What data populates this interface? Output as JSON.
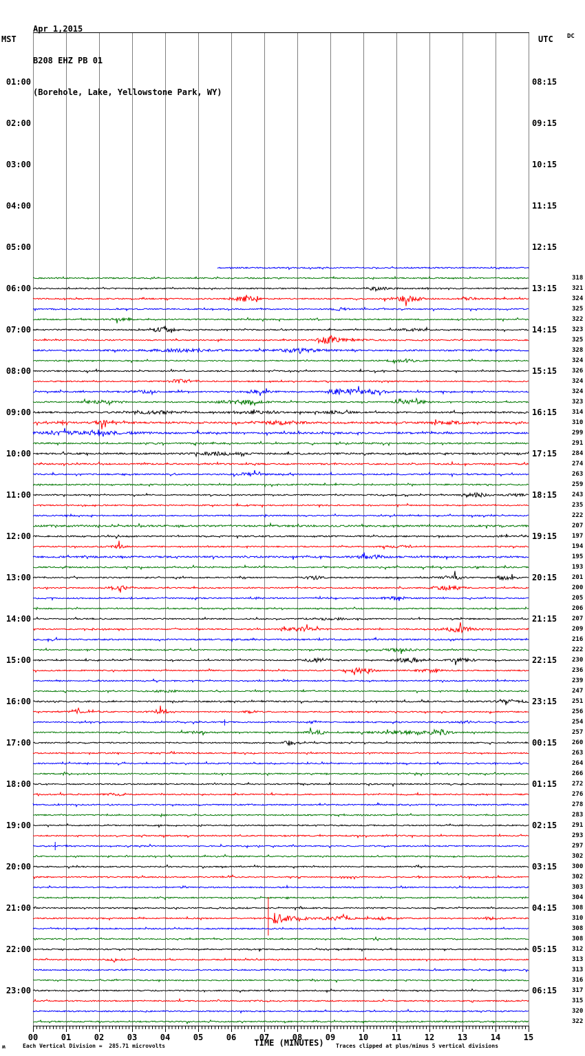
{
  "title": {
    "date": "Apr 1,2015",
    "station": "B208 EHZ PB 01",
    "location": "(Borehole, Lake, Yellowstone Park, WY)"
  },
  "axes": {
    "left_label": "MST",
    "right_label": "UTC",
    "dc_label": "DC",
    "x_title": "TIME (MINUTES)",
    "x_ticks": [
      "00",
      "01",
      "02",
      "03",
      "04",
      "05",
      "06",
      "07",
      "08",
      "09",
      "10",
      "11",
      "12",
      "13",
      "14",
      "15"
    ]
  },
  "footer": {
    "mark": "ʍ",
    "scale_note": "Each Vertical Division =  285.71 microvolts",
    "clip_note": "Traces clipped at plus/minus 5 vertical divisions"
  },
  "hour_rows": [
    {
      "mst": "01:00",
      "utc": "08:15"
    },
    {
      "mst": "02:00",
      "utc": "09:15"
    },
    {
      "mst": "03:00",
      "utc": "10:15"
    },
    {
      "mst": "04:00",
      "utc": "11:15"
    },
    {
      "mst": "05:00",
      "utc": "12:15"
    },
    {
      "mst": "06:00",
      "utc": "13:15"
    },
    {
      "mst": "07:00",
      "utc": "14:15"
    },
    {
      "mst": "08:00",
      "utc": "15:15"
    },
    {
      "mst": "09:00",
      "utc": "16:15"
    },
    {
      "mst": "10:00",
      "utc": "17:15"
    },
    {
      "mst": "11:00",
      "utc": "18:15"
    },
    {
      "mst": "12:00",
      "utc": "19:15"
    },
    {
      "mst": "13:00",
      "utc": "20:15"
    },
    {
      "mst": "14:00",
      "utc": "21:15"
    },
    {
      "mst": "15:00",
      "utc": "22:15"
    },
    {
      "mst": "16:00",
      "utc": "23:15"
    },
    {
      "mst": "17:00",
      "utc": "00:15"
    },
    {
      "mst": "18:00",
      "utc": "01:15"
    },
    {
      "mst": "19:00",
      "utc": "02:15"
    },
    {
      "mst": "20:00",
      "utc": "03:15"
    },
    {
      "mst": "21:00",
      "utc": "04:15"
    },
    {
      "mst": "22:00",
      "utc": "05:15"
    },
    {
      "mst": "23:00",
      "utc": "06:15"
    }
  ],
  "colors": {
    "grid": "#7f7f7f",
    "border": "#000000",
    "trace": {
      "k": "#000000",
      "r": "#ff0000",
      "b": "#0000ff",
      "g": "#007700"
    }
  },
  "chart_data": {
    "type": "line",
    "title": "B208 EHZ PB 01 helicorder, Apr 1,2015",
    "xlabel": "TIME (MINUTES)",
    "x_range_minutes": [
      0,
      15
    ],
    "ylabel_left": "MST",
    "ylabel_right": "UTC",
    "row_interval_minutes": 15,
    "clip_divisions": 5,
    "microvolts_per_division": 285.71,
    "rows": [
      {
        "t": "05:30",
        "c": "b",
        "dc": null,
        "start": 5.58
      },
      {
        "t": "05:45",
        "c": "g",
        "dc": 318
      },
      {
        "t": "06:00",
        "c": "k",
        "dc": 321,
        "ev": [
          [
            10.5,
            1.5,
            0.3,
            0
          ]
        ]
      },
      {
        "t": "06:15",
        "c": "r",
        "dc": 324,
        "ev": [
          [
            6.4,
            3.5,
            0.25,
            0
          ],
          [
            11.3,
            4,
            0.3,
            0
          ],
          [
            13.2,
            1.5,
            0.2,
            0
          ]
        ]
      },
      {
        "t": "06:30",
        "c": "b",
        "dc": 325,
        "ev": [
          [
            9.3,
            1.5,
            0.15,
            0
          ]
        ]
      },
      {
        "t": "06:45",
        "c": "g",
        "dc": 322,
        "ev": [
          [
            2.7,
            1.5,
            0.2,
            0
          ]
        ]
      },
      {
        "t": "07:00",
        "c": "k",
        "dc": 323,
        "ev": [
          [
            3.9,
            2.5,
            0.3,
            0
          ],
          [
            11.5,
            1.5,
            0.3,
            0
          ]
        ]
      },
      {
        "t": "07:15",
        "c": "r",
        "dc": 325,
        "ev": [
          [
            8.9,
            5,
            0.2,
            0
          ],
          [
            9.0,
            2,
            0.8,
            1
          ]
        ]
      },
      {
        "t": "07:30",
        "c": "b",
        "dc": 328,
        "n": 1.3,
        "ev": [
          [
            4.5,
            1.5,
            0.8,
            0
          ],
          [
            8,
            2,
            0.5,
            0
          ]
        ]
      },
      {
        "t": "07:45",
        "c": "g",
        "dc": 324,
        "ev": [
          [
            11.2,
            2,
            0.3,
            0
          ]
        ]
      },
      {
        "t": "08:00",
        "c": "k",
        "dc": 326
      },
      {
        "t": "08:15",
        "c": "r",
        "dc": 324,
        "ev": [
          [
            4.4,
            2.5,
            0.2,
            0
          ]
        ]
      },
      {
        "t": "08:30",
        "c": "b",
        "dc": 324,
        "n": 1.1,
        "ev": [
          [
            3.3,
            1.5,
            0.3,
            0
          ],
          [
            6.8,
            2,
            0.3,
            0
          ],
          [
            9.3,
            3.5,
            0.3,
            0
          ],
          [
            10.2,
            2.5,
            0.4,
            0
          ]
        ]
      },
      {
        "t": "08:45",
        "c": "g",
        "dc": 323,
        "ev": [
          [
            2,
            2,
            0.3,
            0
          ],
          [
            6.3,
            2.5,
            0.5,
            0
          ],
          [
            11.5,
            2.5,
            0.3,
            0
          ]
        ]
      },
      {
        "t": "09:00",
        "c": "k",
        "dc": 314,
        "n": 1.3,
        "ev": [
          [
            3.8,
            2,
            0.4,
            0
          ],
          [
            6.7,
            1.5,
            0.5,
            0
          ],
          [
            9.2,
            1.5,
            0.3,
            0
          ]
        ]
      },
      {
        "t": "09:15",
        "c": "r",
        "dc": 310,
        "n": 1.5,
        "ev": [
          [
            0.9,
            4,
            4,
            2
          ],
          [
            2.1,
            3,
            0.15,
            0
          ],
          [
            7.5,
            2,
            0.4,
            0
          ],
          [
            12.5,
            2,
            0.3,
            0
          ]
        ]
      },
      {
        "t": "09:30",
        "c": "b",
        "dc": 299,
        "n": 1.4,
        "ev": [
          [
            1.5,
            2,
            1,
            0
          ]
        ]
      },
      {
        "t": "09:45",
        "c": "g",
        "dc": 291,
        "n": 1.2
      },
      {
        "t": "10:00",
        "c": "k",
        "dc": 284,
        "n": 1.4,
        "ev": [
          [
            5.6,
            2,
            0.4,
            0
          ]
        ]
      },
      {
        "t": "10:15",
        "c": "r",
        "dc": 274,
        "n": 1.2
      },
      {
        "t": "10:30",
        "c": "b",
        "dc": 263,
        "n": 1.1,
        "ev": [
          [
            6.5,
            1.5,
            0.3,
            0
          ]
        ]
      },
      {
        "t": "10:45",
        "c": "g",
        "dc": 259,
        "n": 1.1
      },
      {
        "t": "11:00",
        "c": "k",
        "dc": 243,
        "ev": [
          [
            13.4,
            2.5,
            0.25,
            0
          ],
          [
            14.6,
            1.5,
            0.2,
            0
          ]
        ]
      },
      {
        "t": "11:15",
        "c": "r",
        "dc": 235
      },
      {
        "t": "11:30",
        "c": "b",
        "dc": 222
      },
      {
        "t": "11:45",
        "c": "g",
        "dc": 207,
        "n": 1.5
      },
      {
        "t": "12:00",
        "c": "k",
        "dc": 197,
        "n": 1.2
      },
      {
        "t": "12:15",
        "c": "r",
        "dc": 194,
        "ev": [
          [
            2.6,
            2.5,
            0.15,
            0
          ],
          [
            11,
            1.5,
            0.3,
            0
          ]
        ]
      },
      {
        "t": "12:30",
        "c": "b",
        "dc": 195,
        "n": 1.4,
        "ev": [
          [
            10.2,
            2,
            0.3,
            0
          ]
        ]
      },
      {
        "t": "12:45",
        "c": "g",
        "dc": 193,
        "n": 1.1
      },
      {
        "t": "13:00",
        "c": "k",
        "dc": 201,
        "ev": [
          [
            8.5,
            2.5,
            0.2,
            0
          ],
          [
            12.7,
            3,
            0.2,
            0
          ],
          [
            14.3,
            2.5,
            0.2,
            0
          ]
        ]
      },
      {
        "t": "13:15",
        "c": "r",
        "dc": 200,
        "ev": [
          [
            2.6,
            3,
            0.2,
            0
          ],
          [
            12.6,
            3,
            0.3,
            0
          ]
        ]
      },
      {
        "t": "13:30",
        "c": "b",
        "dc": 205,
        "ev": [
          [
            10.9,
            2.5,
            0.2,
            0
          ]
        ]
      },
      {
        "t": "13:45",
        "c": "g",
        "dc": 206
      },
      {
        "t": "14:00",
        "c": "k",
        "dc": 207,
        "ev": [
          [
            9,
            1.5,
            0.3,
            0
          ]
        ]
      },
      {
        "t": "14:15",
        "c": "r",
        "dc": 209,
        "ev": [
          [
            8.1,
            2.5,
            0.3,
            0
          ],
          [
            12.9,
            3.5,
            0.3,
            0
          ]
        ]
      },
      {
        "t": "14:30",
        "c": "b",
        "dc": 216,
        "n": 1.2
      },
      {
        "t": "14:45",
        "c": "g",
        "dc": 222,
        "ev": [
          [
            11.1,
            1.5,
            0.4,
            0
          ]
        ]
      },
      {
        "t": "15:00",
        "c": "k",
        "dc": 230,
        "ev": [
          [
            8.6,
            2.5,
            0.3,
            0
          ],
          [
            11.4,
            3,
            0.3,
            0
          ],
          [
            13,
            2,
            0.3,
            0
          ]
        ]
      },
      {
        "t": "15:15",
        "c": "r",
        "dc": 236,
        "ev": [
          [
            9.9,
            3,
            0.3,
            0
          ],
          [
            12,
            1.5,
            0.3,
            0
          ]
        ]
      },
      {
        "t": "15:30",
        "c": "b",
        "dc": 239
      },
      {
        "t": "15:45",
        "c": "g",
        "dc": 247,
        "ev": [
          [
            4,
            1.5,
            0.3,
            0
          ]
        ]
      },
      {
        "t": "16:00",
        "c": "k",
        "dc": 251,
        "n": 1.2,
        "ev": [
          [
            14.5,
            2,
            0.3,
            0
          ]
        ]
      },
      {
        "t": "16:15",
        "c": "r",
        "dc": 256,
        "ev": [
          [
            1.3,
            3,
            0.15,
            0
          ],
          [
            3.8,
            2.5,
            0.2,
            0
          ],
          [
            6.6,
            1.5,
            0.15,
            0
          ]
        ]
      },
      {
        "t": "16:30",
        "c": "b",
        "dc": 254,
        "ev": [
          [
            5.8,
            4,
            5,
            2
          ],
          [
            8.5,
            1.5,
            0.15,
            0
          ],
          [
            13.1,
            1.5,
            0.15,
            0
          ]
        ]
      },
      {
        "t": "16:45",
        "c": "g",
        "dc": 257,
        "ev": [
          [
            4.9,
            1.5,
            0.2,
            0
          ],
          [
            8.6,
            2.5,
            0.2,
            0
          ],
          [
            11.5,
            2,
            0.8,
            0
          ],
          [
            12.35,
            3,
            0.15,
            0
          ]
        ]
      },
      {
        "t": "17:00",
        "c": "k",
        "dc": 260,
        "ev": [
          [
            7.75,
            3,
            0.12,
            0
          ]
        ]
      },
      {
        "t": "17:15",
        "c": "r",
        "dc": 263
      },
      {
        "t": "17:30",
        "c": "b",
        "dc": 264
      },
      {
        "t": "17:45",
        "c": "g",
        "dc": 266
      },
      {
        "t": "18:00",
        "c": "k",
        "dc": 272
      },
      {
        "t": "18:15",
        "c": "r",
        "dc": 276,
        "ev": [
          [
            2.5,
            1.5,
            0.2,
            0
          ]
        ]
      },
      {
        "t": "18:30",
        "c": "b",
        "dc": 278
      },
      {
        "t": "18:45",
        "c": "g",
        "dc": 283
      },
      {
        "t": "19:00",
        "c": "k",
        "dc": 291
      },
      {
        "t": "19:15",
        "c": "r",
        "dc": 293
      },
      {
        "t": "19:30",
        "c": "b",
        "dc": 297,
        "ev": [
          [
            0.67,
            6,
            6,
            2
          ]
        ]
      },
      {
        "t": "19:45",
        "c": "g",
        "dc": 302
      },
      {
        "t": "20:00",
        "c": "k",
        "dc": 300
      },
      {
        "t": "20:15",
        "c": "r",
        "dc": 302
      },
      {
        "t": "20:30",
        "c": "b",
        "dc": 303
      },
      {
        "t": "20:45",
        "c": "g",
        "dc": 304
      },
      {
        "t": "21:00",
        "c": "k",
        "dc": 308
      },
      {
        "t": "21:15",
        "c": "r",
        "dc": 310,
        "ev": [
          [
            7.12,
            31,
            25,
            2
          ],
          [
            7.2,
            9,
            0.5,
            1
          ],
          [
            9.2,
            2.5,
            0.3,
            0
          ],
          [
            10.5,
            1.5,
            0.3,
            0
          ],
          [
            13.8,
            1.5,
            0.2,
            0
          ]
        ]
      },
      {
        "t": "21:30",
        "c": "b",
        "dc": 308
      },
      {
        "t": "21:45",
        "c": "g",
        "dc": 308
      },
      {
        "t": "22:00",
        "c": "k",
        "dc": 312
      },
      {
        "t": "22:15",
        "c": "r",
        "dc": 313,
        "ev": [
          [
            2.5,
            1.2,
            0.2,
            0
          ]
        ]
      },
      {
        "t": "22:30",
        "c": "b",
        "dc": 313
      },
      {
        "t": "22:45",
        "c": "g",
        "dc": 316
      },
      {
        "t": "23:00",
        "c": "k",
        "dc": 317
      },
      {
        "t": "23:15",
        "c": "r",
        "dc": 315
      },
      {
        "t": "23:30",
        "c": "b",
        "dc": 320
      },
      {
        "t": "23:45",
        "c": "g",
        "dc": 322
      }
    ]
  }
}
